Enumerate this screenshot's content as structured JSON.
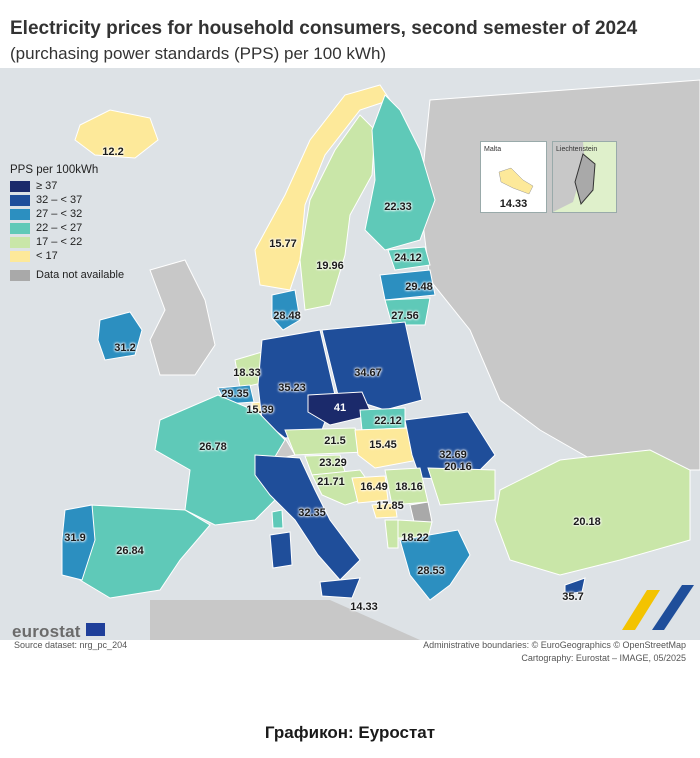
{
  "title": "Electricity prices for household consumers, second semester of 2024",
  "subtitle": "(purchasing power standards (PPS) per 100 kWh)",
  "legend": {
    "title": "PPS per 100kWh",
    "classes": [
      {
        "label": "≥ 37",
        "color": "#1b2a6b"
      },
      {
        "label": "32 – < 37",
        "color": "#1f4e9a"
      },
      {
        "label": "27 – < 32",
        "color": "#2c8fc0"
      },
      {
        "label": "22 – < 27",
        "color": "#5fc9b8"
      },
      {
        "label": "17 – < 22",
        "color": "#c9e6a8"
      },
      {
        "label": "< 17",
        "color": "#fde99a"
      }
    ],
    "na_label": "Data not available",
    "na_color": "#a9a9a9"
  },
  "values": {
    "iceland": "12.2",
    "norway": "15.77",
    "sweden": "19.96",
    "finland": "22.33",
    "estonia": "24.12",
    "latvia": "29.48",
    "lithuania": "27.56",
    "denmark": "28.48",
    "ireland": "31.2",
    "netherlands": "18.33",
    "belgium": "29.35",
    "luxembourg": "15.39",
    "germany": "35.23",
    "poland": "34.67",
    "czechia": "41",
    "slovakia": "22.12",
    "austria": "21.5",
    "hungary": "15.45",
    "romania": "32.69",
    "slovenia": "23.29",
    "croatia": "21.71",
    "bosnia": "16.49",
    "serbia": "18.16",
    "montenegro": "17.85",
    "bulgaria": "20.16",
    "north_macedonia": "18.22",
    "greece": "28.53",
    "turkiye": "20.18",
    "france": "26.78",
    "spain": "26.84",
    "portugal": "31.9",
    "italy": "32.35",
    "malta": "14.33",
    "sicily_note": "14.33",
    "cyprus": "35.7"
  },
  "insets": {
    "malta": "Malta",
    "liechtenstein": "Liechtenstein",
    "malta_value": "14.33"
  },
  "footer": {
    "logo": "eurostat",
    "source": "Source dataset: nrg_pc_204",
    "admin": "Administrative boundaries: © EuroGeographics © OpenStreetMap",
    "cartography": "Cartography: Eurostat – IMAGE, 05/2025"
  },
  "caption": "Графикон: Еуростат"
}
